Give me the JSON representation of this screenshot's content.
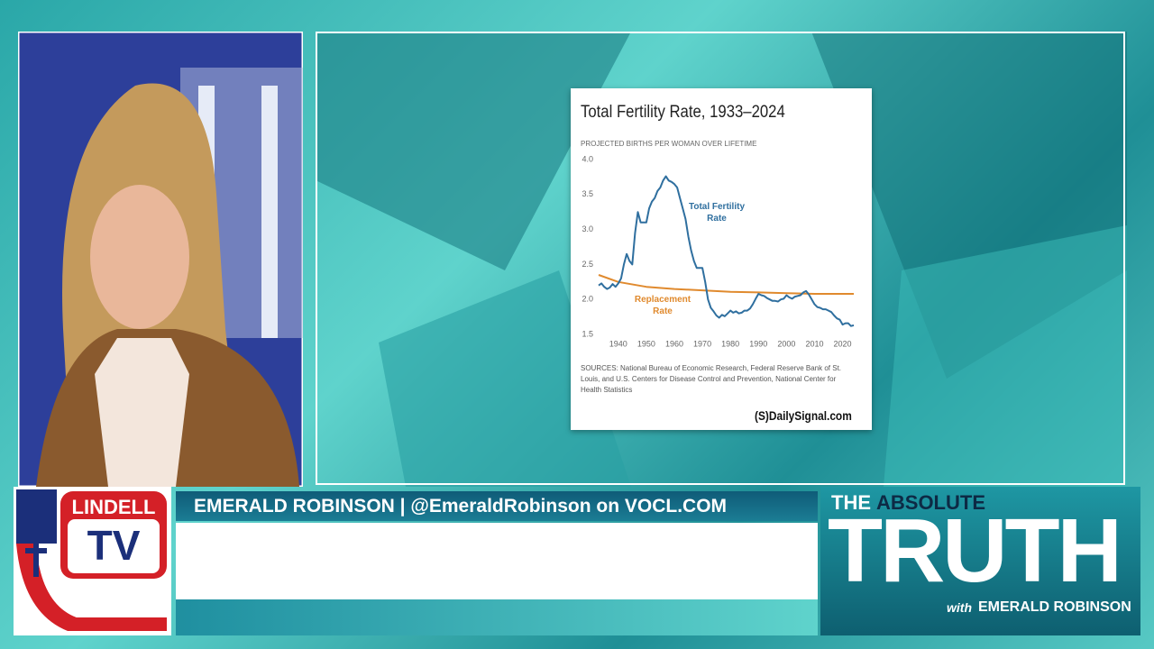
{
  "chart_data": {
    "type": "line",
    "title": "Total Fertility Rate, 1933–2024",
    "subtitle": "PROJECTED BIRTHS PER WOMAN OVER LIFETIME",
    "note": "SOURCES: National Bureau of Economic Research, Federal Reserve Bank of St. Louis, and U.S. Centers for Disease Control and Prevention, National Center for Health Statistics",
    "brand": "(S)DailySignal.com",
    "xlim": [
      1933,
      2024
    ],
    "xticks": [
      1940,
      1950,
      1960,
      1970,
      1980,
      1990,
      2000,
      2010,
      2020
    ],
    "ylim": [
      1.5,
      4.0
    ],
    "yticks": [
      {
        "value": 1.5,
        "label": "1.5"
      },
      {
        "value": 2.0,
        "label": "2.0"
      },
      {
        "value": 2.5,
        "label": "2.5"
      },
      {
        "value": 3.0,
        "label": "3.0"
      },
      {
        "value": 3.5,
        "label": "3.5"
      },
      {
        "value": 4.0,
        "label": "4.0"
      }
    ],
    "grid": false,
    "series": [
      {
        "name": "Total Fertility Rate",
        "color": "#2f6f9f",
        "x": [
          1933,
          1934,
          1935,
          1936,
          1937,
          1938,
          1939,
          1940,
          1941,
          1942,
          1943,
          1944,
          1945,
          1946,
          1947,
          1948,
          1949,
          1950,
          1951,
          1952,
          1953,
          1954,
          1955,
          1956,
          1957,
          1958,
          1959,
          1960,
          1961,
          1962,
          1963,
          1964,
          1965,
          1966,
          1967,
          1968,
          1969,
          1970,
          1971,
          1972,
          1973,
          1974,
          1975,
          1976,
          1977,
          1978,
          1979,
          1980,
          1981,
          1982,
          1983,
          1984,
          1985,
          1986,
          1987,
          1988,
          1989,
          1990,
          1991,
          1992,
          1993,
          1994,
          1995,
          1996,
          1997,
          1998,
          1999,
          2000,
          2001,
          2002,
          2003,
          2004,
          2005,
          2006,
          2007,
          2008,
          2009,
          2010,
          2011,
          2012,
          2013,
          2014,
          2015,
          2016,
          2017,
          2018,
          2019,
          2020,
          2021,
          2022,
          2023,
          2024
        ],
        "values": [
          2.2,
          2.23,
          2.18,
          2.15,
          2.17,
          2.22,
          2.18,
          2.23,
          2.3,
          2.5,
          2.65,
          2.55,
          2.5,
          2.95,
          3.25,
          3.1,
          3.1,
          3.1,
          3.3,
          3.4,
          3.45,
          3.55,
          3.6,
          3.7,
          3.76,
          3.7,
          3.68,
          3.65,
          3.6,
          3.45,
          3.3,
          3.15,
          2.9,
          2.7,
          2.55,
          2.45,
          2.45,
          2.45,
          2.25,
          2.0,
          1.88,
          1.83,
          1.77,
          1.74,
          1.78,
          1.76,
          1.8,
          1.84,
          1.81,
          1.83,
          1.8,
          1.81,
          1.84,
          1.84,
          1.87,
          1.93,
          2.01,
          2.08,
          2.06,
          2.05,
          2.02,
          2.0,
          1.98,
          1.98,
          1.97,
          2.0,
          2.01,
          2.06,
          2.03,
          2.01,
          2.04,
          2.05,
          2.06,
          2.1,
          2.12,
          2.07,
          2.0,
          1.93,
          1.89,
          1.88,
          1.86,
          1.86,
          1.84,
          1.82,
          1.77,
          1.73,
          1.71,
          1.64,
          1.66,
          1.66,
          1.62,
          1.63
        ]
      },
      {
        "name": "Replacement Rate",
        "color": "#e08a2e",
        "x": [
          1933,
          1940,
          1950,
          1960,
          1970,
          1980,
          1990,
          2000,
          2010,
          2024
        ],
        "values": [
          2.35,
          2.25,
          2.18,
          2.15,
          2.13,
          2.11,
          2.1,
          2.09,
          2.08,
          2.08
        ]
      }
    ]
  },
  "lower_third": {
    "name_bar": "EMERALD ROBINSON | @EmeraldRobinson on VOCL.COM"
  },
  "logo": {
    "line1": "LINDELL",
    "line2": "TV"
  },
  "show": {
    "kicker_1": "THE",
    "kicker_2": "ABSOLUTE",
    "title": "TRUTH",
    "host_prefix": "with",
    "host": "EMERALD ROBINSON"
  }
}
